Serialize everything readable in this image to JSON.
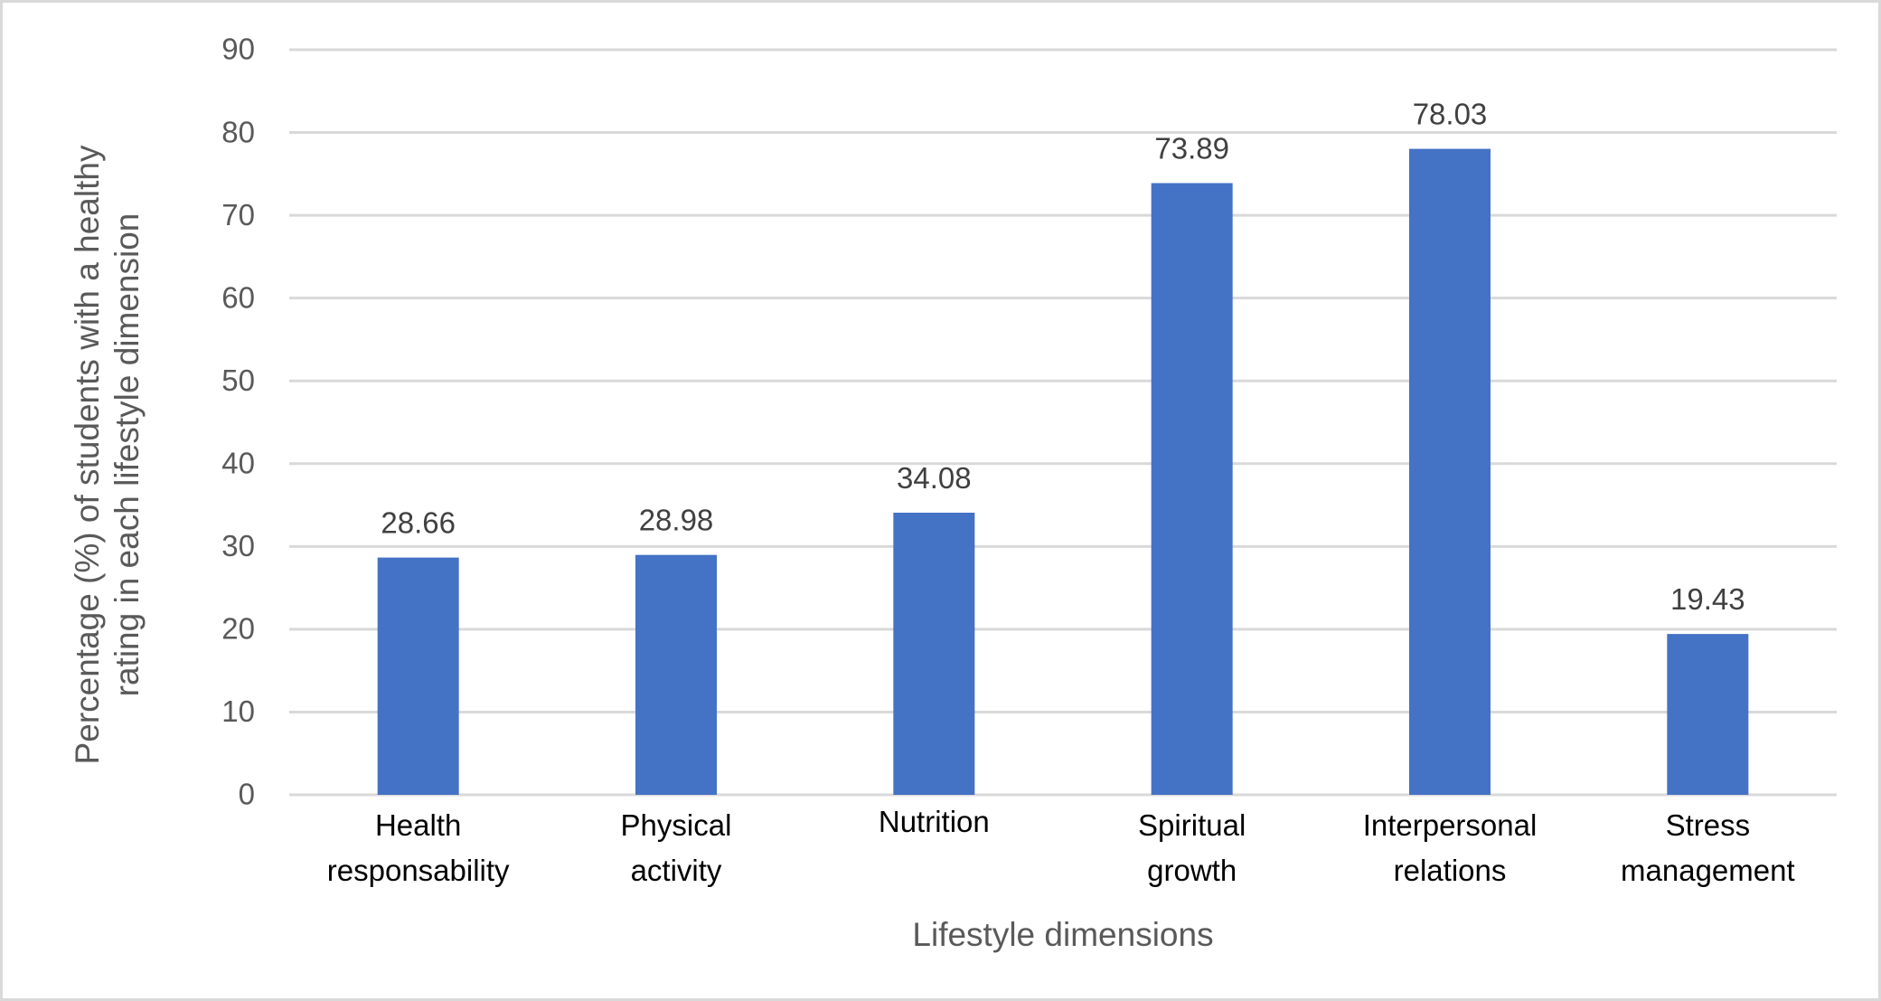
{
  "chart_data": {
    "type": "bar",
    "title": "",
    "xlabel": "Lifestyle dimensions",
    "ylabel_lines": [
      "Percentage (%) of students with a healthy",
      "rating in each lifestyle dimension"
    ],
    "ylabel": "Percentage (%) of students with a healthy rating in each lifestyle dimension",
    "ylim": [
      0,
      90
    ],
    "yticks": [
      0,
      10,
      20,
      30,
      40,
      50,
      60,
      70,
      80,
      90
    ],
    "grid": true,
    "legend": "none",
    "categories": [
      [
        "Health",
        "responsability"
      ],
      [
        "Physical",
        "activity"
      ],
      [
        "Nutrition"
      ],
      [
        "Spiritual",
        "growth"
      ],
      [
        "Interpersonal",
        "relations"
      ],
      [
        "Stress",
        "management"
      ]
    ],
    "category_names": [
      "Health responsability",
      "Physical activity",
      "Nutrition",
      "Spiritual growth",
      "Interpersonal relations",
      "Stress management"
    ],
    "values": [
      28.66,
      28.98,
      34.08,
      73.89,
      78.03,
      19.43
    ],
    "data_labels": [
      "28.66",
      "28.98",
      "34.08",
      "73.89",
      "78.03",
      "19.43"
    ],
    "colors": {
      "bar": "#4472C4",
      "grid": "#D9D9D9",
      "axis_text": "#595959",
      "category_text": "#000000",
      "data_label_text": "#404040"
    }
  }
}
